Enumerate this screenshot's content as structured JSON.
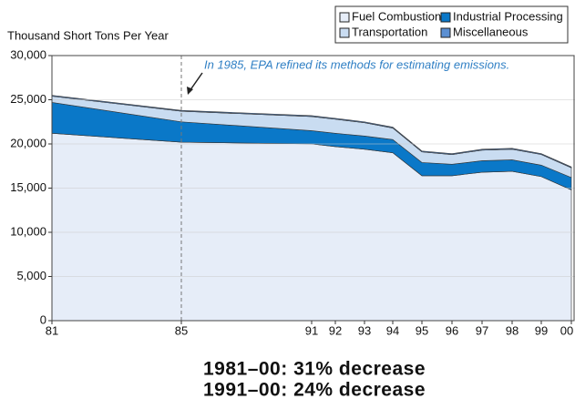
{
  "chart_data": {
    "type": "stacked_area",
    "y_axis_label": "Thousand Short Tons Per Year",
    "annotation": "In 1985, EPA refined its methods for estimating emissions.",
    "categories": [
      "81",
      "85",
      "91",
      "92",
      "93",
      "94",
      "95",
      "96",
      "97",
      "98",
      "99",
      "00"
    ],
    "series": [
      {
        "name": "Fuel Combustion",
        "color": "#e6edf8",
        "values": [
          21200,
          20200,
          20000,
          19700,
          19400,
          19000,
          16400,
          16400,
          16800,
          16900,
          16300,
          14800
        ]
      },
      {
        "name": "Industrial Processing",
        "color": "#0a78c8",
        "values": [
          3500,
          2300,
          1500,
          1500,
          1500,
          1500,
          1500,
          1300,
          1300,
          1300,
          1300,
          1400
        ]
      },
      {
        "name": "Transportation",
        "color": "#c9dcf1",
        "values": [
          700,
          1200,
          1600,
          1600,
          1500,
          1300,
          1200,
          1100,
          1200,
          1200,
          1200,
          1100
        ]
      },
      {
        "name": "Miscellaneous",
        "color": "#5b8fd2",
        "values": [
          100,
          100,
          100,
          100,
          100,
          100,
          100,
          100,
          100,
          100,
          100,
          100
        ]
      }
    ],
    "ylim": [
      0,
      30000
    ],
    "yticks": [
      0,
      {
        "value": 5000,
        "label": "5,000"
      },
      {
        "value": 10000,
        "label": "10,000"
      },
      {
        "value": 15000,
        "label": "15,000"
      },
      {
        "value": 20000,
        "label": "20,000"
      },
      {
        "value": 25000,
        "label": "25,000"
      },
      {
        "value": 30000,
        "label": "30,000"
      }
    ],
    "grid": true,
    "legend": "top-right",
    "notes": [
      "1981–00:  31%  decrease",
      "1991–00:  24%  decrease"
    ]
  }
}
